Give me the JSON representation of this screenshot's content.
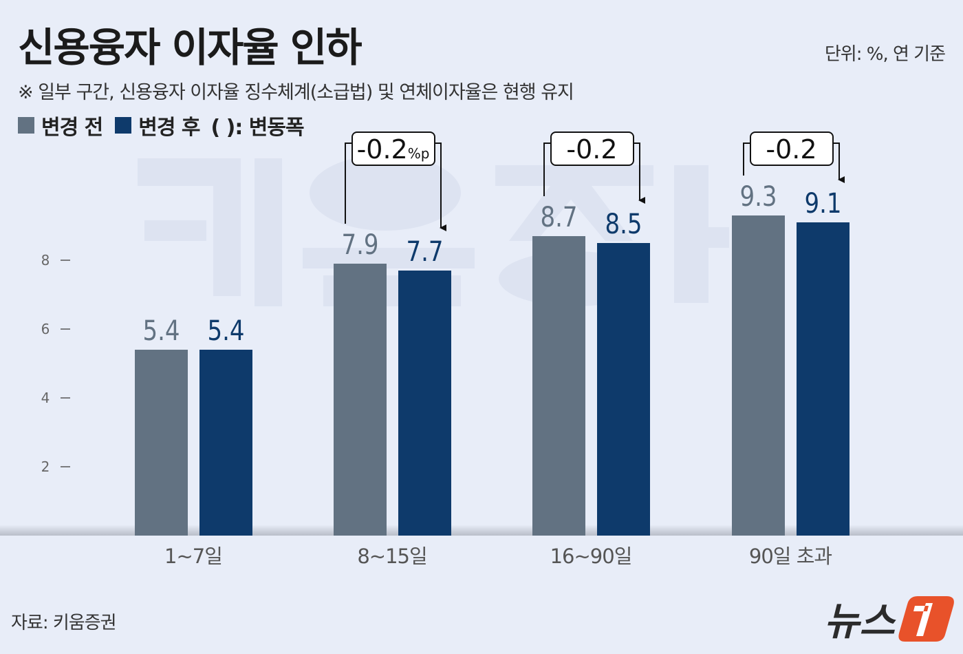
{
  "title": "신용융자 이자율 인하",
  "unit": "단위: %, 연 기준",
  "note": "※ 일부 구간, 신용융자 이자율 징수체계(소급법) 및 연체이자율은 현행 유지",
  "legend": {
    "before": "변경 전",
    "after": "변경 후",
    "change": "(    ): 변동폭"
  },
  "source": "자료: 키움증권",
  "watermark": "키움증권",
  "logo": "뉴스1",
  "colors": {
    "before": "#627282",
    "after": "#0e3a6b",
    "background": "#e8edf8",
    "logo_accent": "#e8522a"
  },
  "chart_data": {
    "type": "bar",
    "categories": [
      "1~7일",
      "8~15일",
      "16~90일",
      "90일 초과"
    ],
    "series": [
      {
        "name": "변경 전",
        "values": [
          5.4,
          7.9,
          8.7,
          9.3
        ]
      },
      {
        "name": "변경 후",
        "values": [
          5.4,
          7.7,
          8.5,
          9.1
        ]
      }
    ],
    "value_labels": {
      "before": [
        "5.4",
        "7.9",
        "8.7",
        "9.3"
      ],
      "after": [
        "5.4",
        "7.7",
        "8.5",
        "9.1"
      ]
    },
    "changes": [
      null,
      "-0.2",
      "-0.2",
      "-0.2"
    ],
    "change_unit": "%p",
    "yticks": [
      "2",
      "4",
      "6",
      "8"
    ],
    "ylim": [
      0,
      10
    ],
    "grid": false,
    "legend_position": "top-left"
  }
}
